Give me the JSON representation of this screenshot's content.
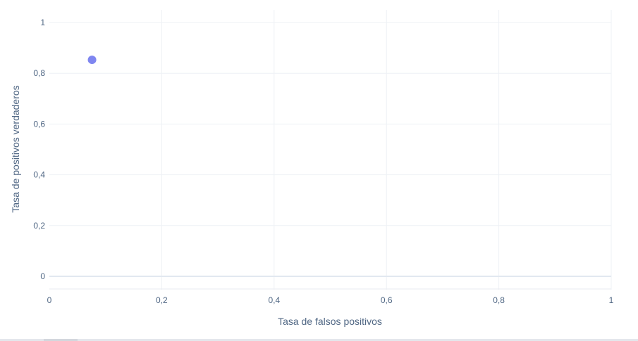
{
  "chart_data": {
    "type": "scatter",
    "xlabel": "Tasa de falsos positivos",
    "ylabel": "Tasa de positivos verdaderos",
    "xlim": [
      0,
      1
    ],
    "ylim": [
      0,
      1
    ],
    "x_ticks": [
      0,
      0.2,
      0.4,
      0.6,
      0.8,
      1
    ],
    "y_ticks": [
      0,
      0.2,
      0.4,
      0.6,
      0.8,
      1
    ],
    "x_tick_labels": [
      "0",
      "0,2",
      "0,4",
      "0,6",
      "0,8",
      "1"
    ],
    "y_tick_labels": [
      "0",
      "0,2",
      "0,4",
      "0,6",
      "0,8",
      "1"
    ],
    "grid": true,
    "legend": "none",
    "points": [
      {
        "x": 0.076,
        "y": 0.853
      }
    ],
    "colors": {
      "marker": "#7f86f0",
      "grid": "#eef1f5",
      "zero_line": "#e2e8f0",
      "text": "#506784"
    }
  }
}
